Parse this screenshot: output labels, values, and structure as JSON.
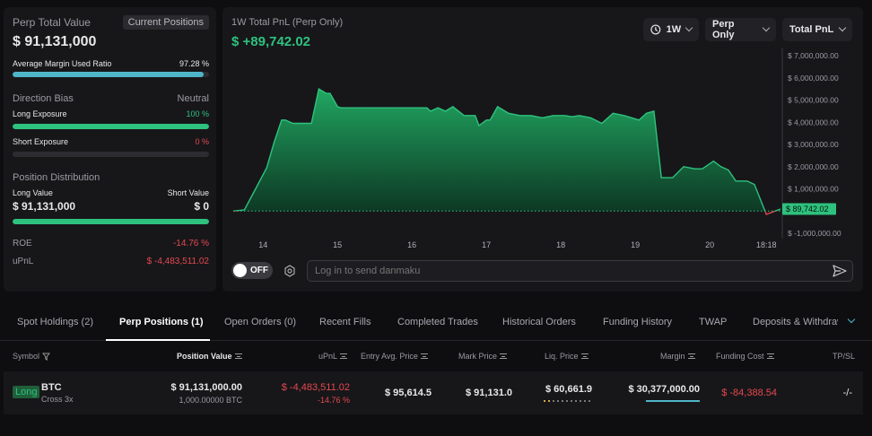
{
  "summary": {
    "title": "Perp Total Value",
    "tab_label": "Current Positions",
    "total_value": "$ 91,131,000",
    "margin_label": "Average Margin Used Ratio",
    "margin_value": "97.28 %",
    "margin_ratio": 0.9728,
    "direction_label": "Direction Bias",
    "direction_value": "Neutral",
    "long_exposure_label": "Long Exposure",
    "long_exposure_value": "100 %",
    "long_exposure_ratio": 1.0,
    "short_exposure_label": "Short Exposure",
    "short_exposure_value": "0 %",
    "short_exposure_ratio": 0,
    "distribution_label": "Position Distribution",
    "long_value_label": "Long Value",
    "short_value_label": "Short Value",
    "long_value": "$ 91,131,000",
    "short_value": "$ 0",
    "long_share": 1.0,
    "roe_label": "ROE",
    "roe_value": "-14.76 %",
    "upnl_label": "uPnL",
    "upnl_value": "$ -4,483,511.02"
  },
  "chart": {
    "title": "1W Total PnL (Perp Only)",
    "value": "$ +89,742.02",
    "current_label": "$ 89,742.02",
    "timeframe": "1W",
    "filter": "Perp Only",
    "metric": "Total PnL",
    "colors": {
      "up": "#2ec27e",
      "down": "#e5484d"
    }
  },
  "chart_data": {
    "type": "area",
    "title": "1W Total PnL (Perp Only)",
    "y_ticks": [
      "$ 7,000,000.00",
      "$ 6,000,000.00",
      "$ 5,000,000.00",
      "$ 4,000,000.00",
      "$ 3,000,000.00",
      "$ 2,000,000.00",
      "$ 1,000,000.00",
      "$ 0",
      "$ -1,000,000.00"
    ],
    "y_tick_values": [
      7000000,
      6000000,
      5000000,
      4000000,
      3000000,
      2000000,
      1000000,
      0,
      -1000000
    ],
    "x_ticks": [
      "14",
      "15",
      "16",
      "17",
      "18",
      "19",
      "20",
      "18:18"
    ],
    "x_tick_values": [
      14,
      15,
      16,
      17,
      18,
      19,
      20,
      20.76
    ],
    "ylim": [
      -1000000,
      7000000
    ],
    "xlim": [
      13.6,
      20.95
    ],
    "baseline": 0,
    "x": [
      13.6,
      13.75,
      13.9,
      14.05,
      14.15,
      14.25,
      14.3,
      14.4,
      14.5,
      14.65,
      14.75,
      14.85,
      14.9,
      15.0,
      15.05,
      15.15,
      15.25,
      15.3,
      15.45,
      15.6,
      15.75,
      15.9,
      16.05,
      16.2,
      16.25,
      16.35,
      16.45,
      16.55,
      16.7,
      16.85,
      16.9,
      17.0,
      17.05,
      17.15,
      17.3,
      17.45,
      17.6,
      17.75,
      17.9,
      18.05,
      18.15,
      18.25,
      18.4,
      18.55,
      18.7,
      18.85,
      18.95,
      19.05,
      19.15,
      19.25,
      19.35,
      19.5,
      19.65,
      19.8,
      19.9,
      20.05,
      20.15,
      20.25,
      20.35,
      20.5,
      20.6,
      20.76,
      20.95
    ],
    "values": [
      0,
      50000,
      1000000,
      1950000,
      3100000,
      4100000,
      4100000,
      3950000,
      3950000,
      3950000,
      5500000,
      5300000,
      5300000,
      4700000,
      4650000,
      4650000,
      4650000,
      4650000,
      4650000,
      4650000,
      4650000,
      4650000,
      4650000,
      4650000,
      4500000,
      4650000,
      4500000,
      4700000,
      4300000,
      4300000,
      3850000,
      4100000,
      4100000,
      4700000,
      4400000,
      4300000,
      4300000,
      4200000,
      4300000,
      4300000,
      4250000,
      4300000,
      4200000,
      3950000,
      4400000,
      4300000,
      4200000,
      4100000,
      4400000,
      4500000,
      1500000,
      1500000,
      2000000,
      1900000,
      1900000,
      2250000,
      2000000,
      1850000,
      1350000,
      1350000,
      1200000,
      -150000,
      89742.02
    ]
  },
  "danmaku": {
    "toggle_label": "OFF",
    "placeholder": "Log in to send danmaku"
  },
  "tabs": [
    {
      "label": "Spot Holdings (2)"
    },
    {
      "label": "Perp Positions (1)"
    },
    {
      "label": "Open Orders (0)"
    },
    {
      "label": "Recent Fills"
    },
    {
      "label": "Completed Trades"
    },
    {
      "label": "Historical Orders"
    },
    {
      "label": "Funding History"
    },
    {
      "label": "TWAP"
    },
    {
      "label": "Deposits & Withdrawals"
    }
  ],
  "table": {
    "headers": {
      "symbol": "Symbol",
      "position_value": "Position Value",
      "upnl": "uPnL",
      "entry": "Entry Avg. Price",
      "mark": "Mark Price",
      "liq": "Liq. Price",
      "margin": "Margin",
      "funding": "Funding Cost",
      "tpsl": "TP/SL"
    },
    "row": {
      "side": "Long",
      "symbol": "BTC",
      "leverage": "Cross 3x",
      "position_value": "$ 91,131,000.00",
      "position_size": "1,000.00000 BTC",
      "upnl": "$ -4,483,511.02",
      "upnl_pct": "-14.76 %",
      "entry": "$ 95,614.5",
      "mark": "$ 91,131.0",
      "liq": "$ 60,661.9",
      "margin": "$ 30,377,000.00",
      "funding": "$ -84,388.54",
      "tpsl": "-/-"
    }
  }
}
